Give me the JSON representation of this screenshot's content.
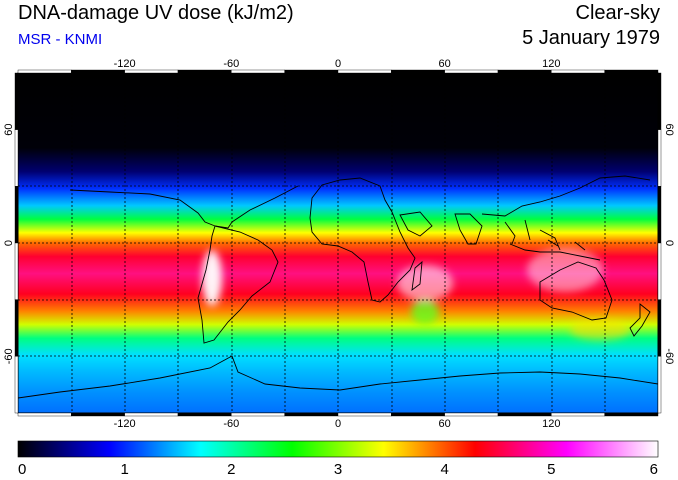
{
  "header": {
    "title": "DNA-damage UV dose (kJ/m2)",
    "credit": "MSR - KNMI",
    "sky_condition": "Clear-sky",
    "date": "5 January 1979"
  },
  "map": {
    "projection": "equirectangular",
    "lon_range": [
      -180,
      180
    ],
    "lat_range": [
      -90,
      90
    ],
    "lon_ticks": [
      -120,
      -60,
      0,
      60,
      120
    ],
    "lon_tick_labels": [
      "-120",
      "-60",
      "0",
      "60",
      "120"
    ],
    "lat_ticks": [
      60,
      0,
      -60
    ],
    "lat_tick_labels": [
      "60",
      "0",
      "-60"
    ],
    "gridlines": "dashed"
  },
  "colorbar": {
    "min": 0,
    "max": 6,
    "labels": [
      "0",
      "1",
      "2",
      "3",
      "4",
      "5",
      "6"
    ],
    "colors": [
      "#000000",
      "#0000ff",
      "#00ffff",
      "#00ff00",
      "#ffff00",
      "#ff0000",
      "#ff00ff",
      "#ffffff"
    ]
  }
}
